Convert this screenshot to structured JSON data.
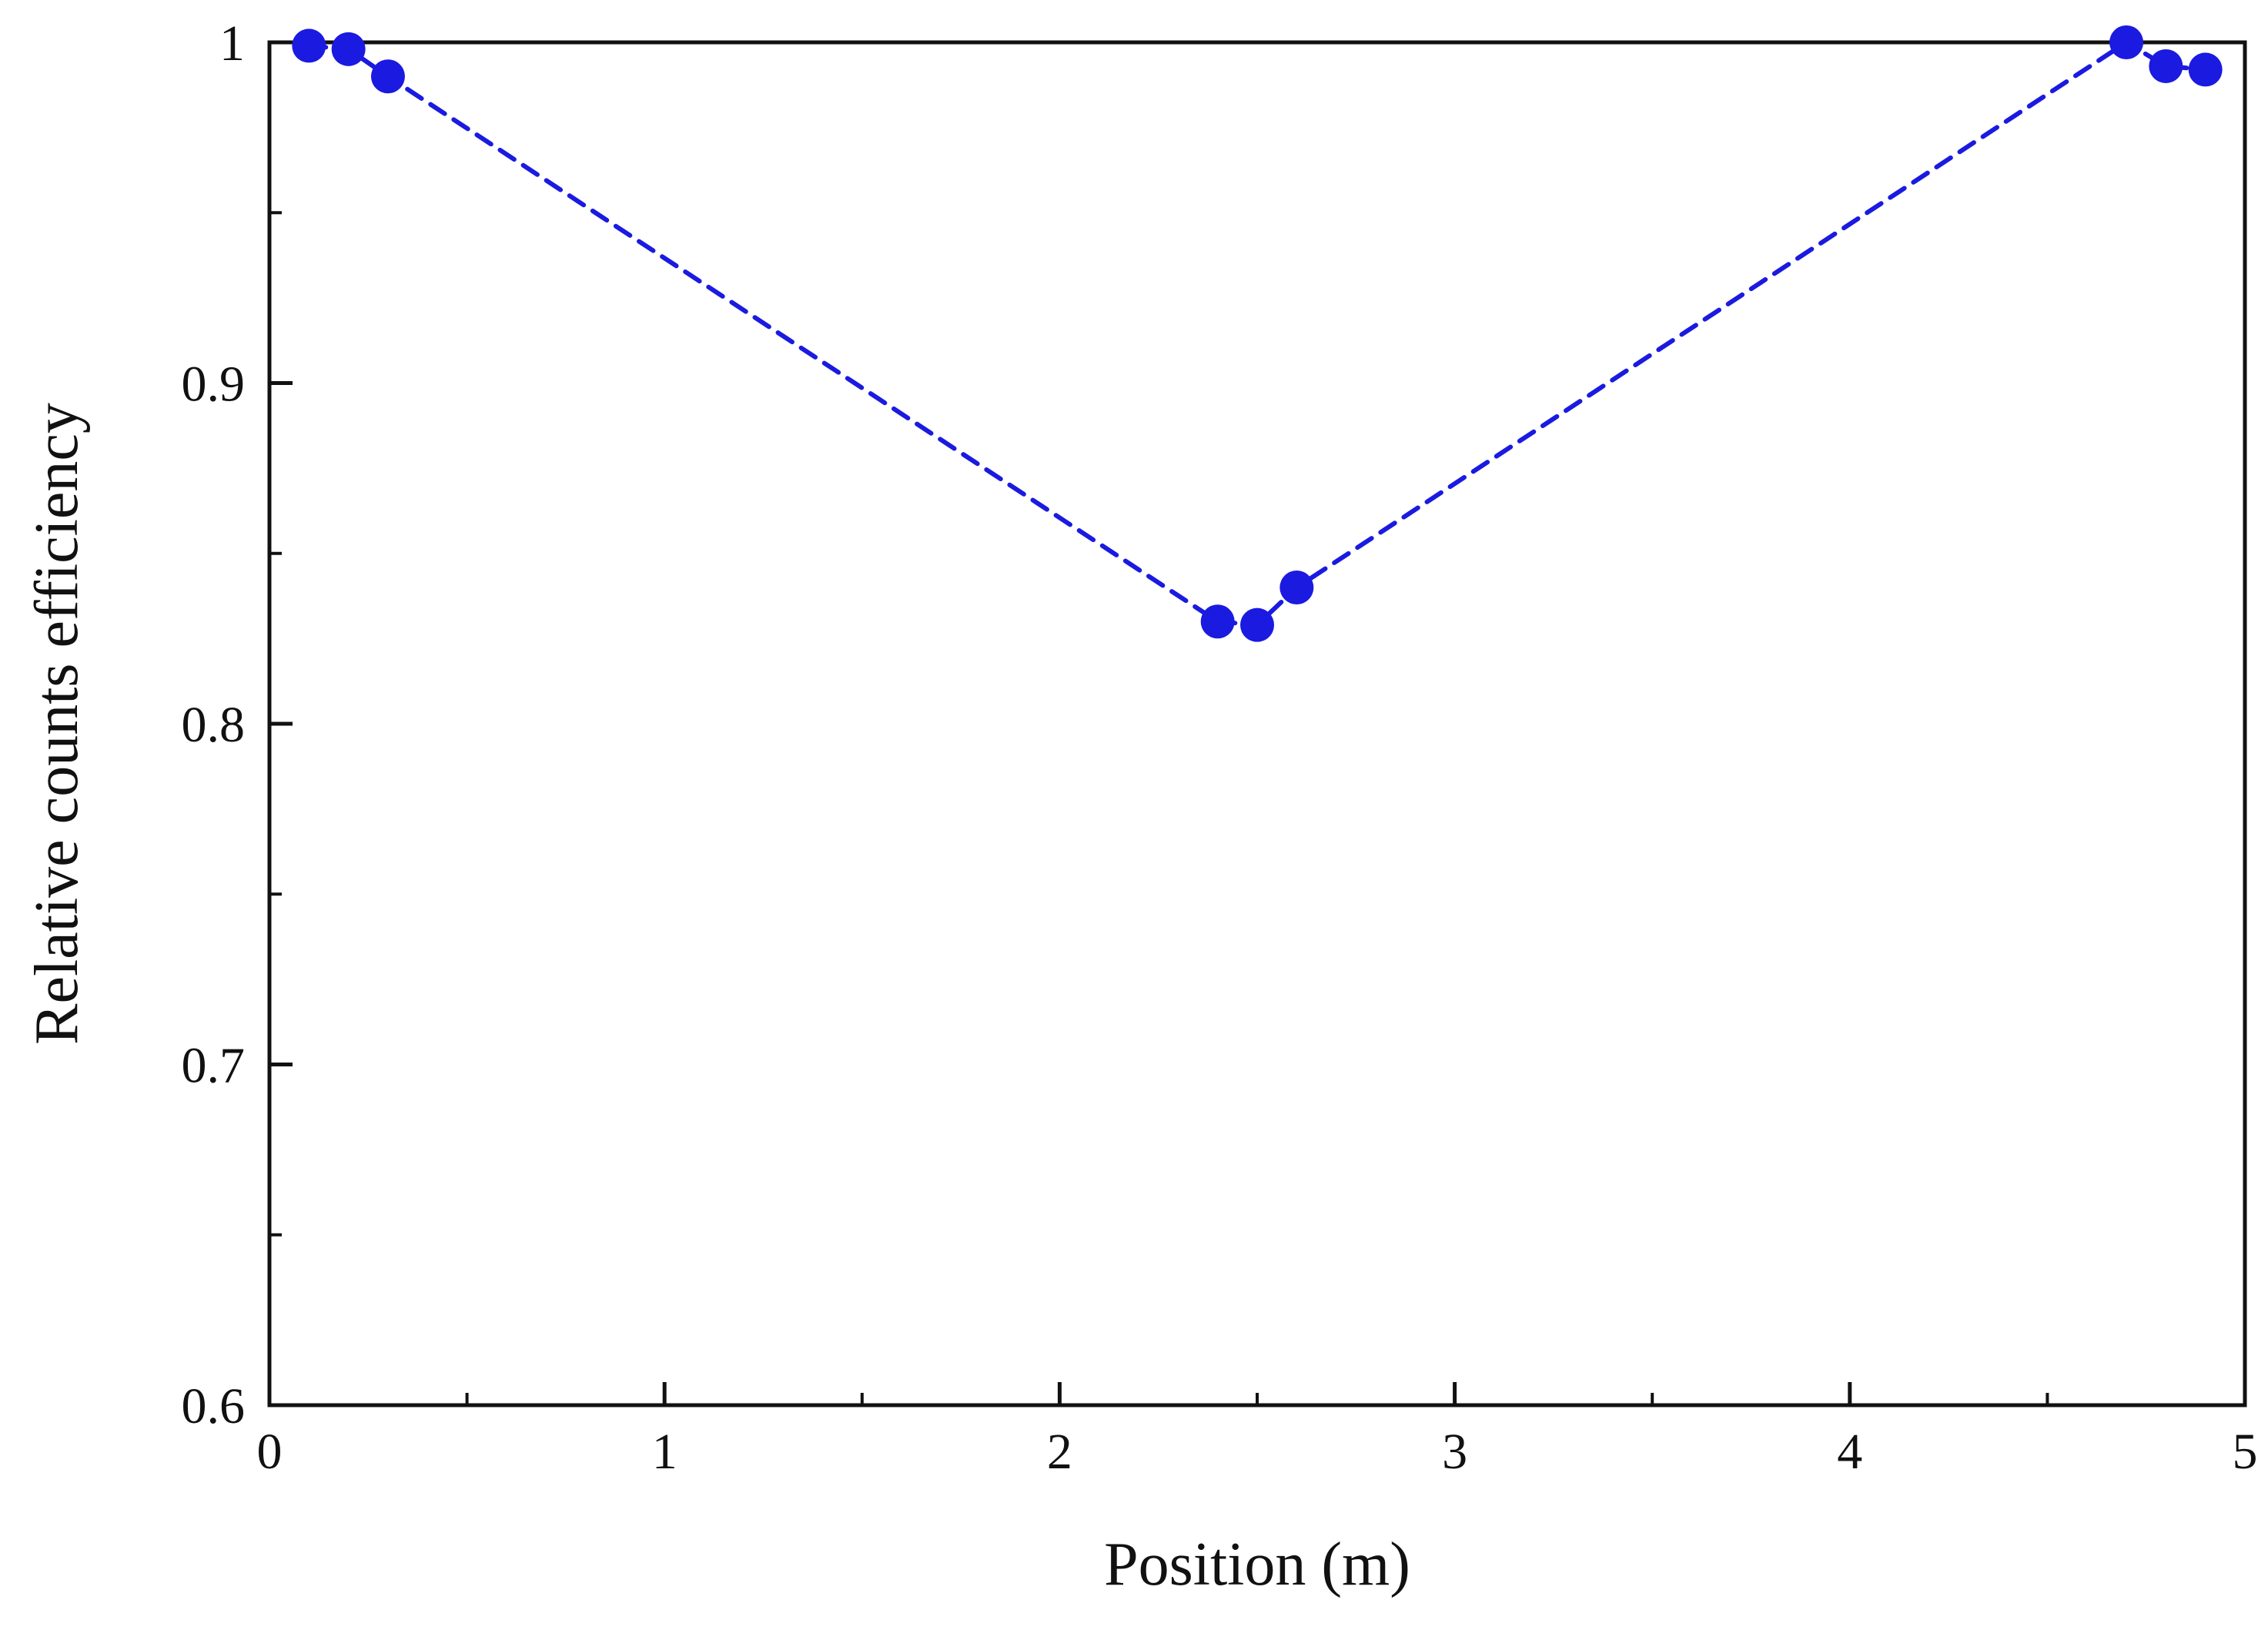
{
  "chart_data": {
    "type": "scatter",
    "title": "",
    "xlabel": "Position (m)",
    "ylabel": "Relative counts efficiency",
    "series": [
      {
        "name": "Relative counts efficiency",
        "x": [
          0.1,
          0.2,
          0.3,
          2.4,
          2.5,
          2.6,
          4.7,
          4.8,
          4.9
        ],
        "y": [
          0.999,
          0.998,
          0.99,
          0.83,
          0.829,
          0.84,
          1.0,
          0.993,
          0.992
        ]
      }
    ],
    "xlim": [
      0,
      5
    ],
    "ylim": [
      0.6,
      1.0
    ],
    "x_ticks": [
      0,
      1,
      2,
      3,
      4,
      5
    ],
    "x_tick_labels": [
      "0",
      "1",
      "2",
      "3",
      "4",
      "5"
    ],
    "y_ticks": [
      0.6,
      0.7,
      0.8,
      0.9,
      1.0
    ],
    "y_tick_labels": [
      "0.6",
      "0.7",
      "0.8",
      "0.9",
      "1"
    ],
    "x_minor_step": 0.5,
    "y_minor_step": 0.05,
    "grid": false,
    "legend": "none",
    "line_style": "dashed",
    "marker": "circle",
    "colors": {
      "series": "#1a1ae0",
      "axis": "#111111",
      "background": "#ffffff"
    }
  }
}
